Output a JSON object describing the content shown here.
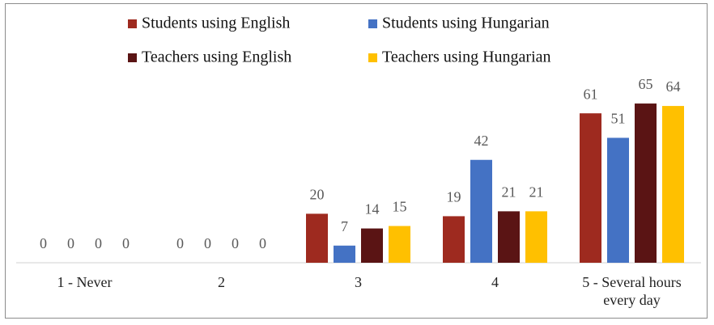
{
  "chart_data": {
    "type": "bar",
    "categories": [
      "1 - Never",
      "2",
      "3",
      "4",
      "5 - Several hours every day"
    ],
    "series": [
      {
        "name": "Students using English",
        "color": "#9e2a1f",
        "values": [
          0,
          0,
          20,
          19,
          61
        ]
      },
      {
        "name": "Students using Hungarian",
        "color": "#4472c4",
        "values": [
          0,
          0,
          7,
          42,
          51
        ]
      },
      {
        "name": "Teachers using English",
        "color": "#5a1414",
        "values": [
          0,
          0,
          14,
          21,
          65
        ]
      },
      {
        "name": "Teachers using Hungarian",
        "color": "#ffc000",
        "values": [
          0,
          0,
          15,
          21,
          64
        ]
      }
    ],
    "legend": "top"
  }
}
